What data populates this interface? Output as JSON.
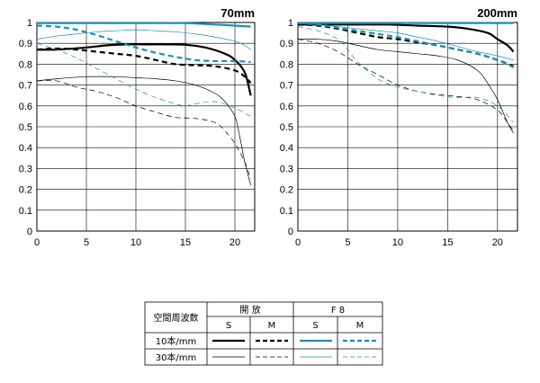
{
  "chart_data": [
    {
      "type": "line",
      "title": "70mm",
      "xlim": [
        0,
        22
      ],
      "ylim": [
        0,
        1
      ],
      "x_ticks": [
        "0",
        "5",
        "10",
        "15",
        "20"
      ],
      "y_ticks": [
        "0",
        "0.1",
        "0.2",
        "0.3",
        "0.4",
        "0.5",
        "0.6",
        "0.7",
        "0.8",
        "0.9",
        "1"
      ],
      "grid": true,
      "series": [
        {
          "key": "open_10_S",
          "style": "thick-solid-black",
          "x": [
            0,
            2,
            5,
            7,
            9,
            11,
            13,
            15,
            17,
            19,
            20,
            21,
            21.6
          ],
          "y": [
            0.87,
            0.87,
            0.88,
            0.89,
            0.895,
            0.895,
            0.895,
            0.893,
            0.88,
            0.85,
            0.82,
            0.76,
            0.65
          ]
        },
        {
          "key": "open_10_M",
          "style": "thick-dash-black",
          "x": [
            0,
            2,
            4,
            6,
            8,
            10,
            12,
            14,
            16,
            18,
            20,
            21,
            21.6
          ],
          "y": [
            0.87,
            0.875,
            0.87,
            0.86,
            0.85,
            0.84,
            0.82,
            0.8,
            0.795,
            0.79,
            0.77,
            0.74,
            0.71
          ]
        },
        {
          "key": "open_30_S",
          "style": "thin-solid-black",
          "x": [
            0,
            2,
            5,
            8,
            10,
            12,
            14,
            16,
            18,
            19,
            20,
            20.5,
            21,
            21.6
          ],
          "y": [
            0.72,
            0.73,
            0.74,
            0.74,
            0.735,
            0.73,
            0.72,
            0.7,
            0.66,
            0.62,
            0.55,
            0.45,
            0.33,
            0.22
          ]
        },
        {
          "key": "open_30_M",
          "style": "thin-dash-black",
          "x": [
            0,
            2,
            4,
            6,
            8,
            10,
            12,
            14,
            16,
            18,
            19,
            20,
            21,
            21.6
          ],
          "y": [
            0.72,
            0.72,
            0.69,
            0.67,
            0.64,
            0.6,
            0.57,
            0.545,
            0.54,
            0.52,
            0.48,
            0.42,
            0.33,
            0.25
          ]
        },
        {
          "key": "f8_10_S",
          "style": "thick-solid-blue",
          "x": [
            0,
            3,
            6,
            9,
            12,
            15,
            18,
            20,
            21.6
          ],
          "y": [
            0.997,
            0.997,
            0.997,
            0.997,
            0.997,
            0.997,
            0.99,
            0.985,
            0.98
          ]
        },
        {
          "key": "f8_10_M",
          "style": "thick-dash-blue",
          "x": [
            0,
            2,
            4,
            6,
            8,
            10,
            12,
            14,
            16,
            18,
            20,
            21.6
          ],
          "y": [
            0.985,
            0.98,
            0.965,
            0.94,
            0.91,
            0.88,
            0.855,
            0.835,
            0.82,
            0.815,
            0.815,
            0.81
          ]
        },
        {
          "key": "f8_30_S",
          "style": "thin-solid-blue",
          "x": [
            0,
            2,
            4,
            6,
            8,
            10,
            12,
            14,
            16,
            18,
            20,
            21,
            21.6
          ],
          "y": [
            0.92,
            0.935,
            0.945,
            0.955,
            0.96,
            0.965,
            0.96,
            0.955,
            0.945,
            0.93,
            0.91,
            0.89,
            0.87
          ]
        },
        {
          "key": "f8_30_M",
          "style": "thin-dash-blue",
          "x": [
            0,
            2,
            4,
            6,
            8,
            10,
            12,
            14,
            15,
            16,
            18,
            20,
            21.6
          ],
          "y": [
            0.9,
            0.87,
            0.83,
            0.78,
            0.73,
            0.68,
            0.64,
            0.61,
            0.6,
            0.61,
            0.62,
            0.59,
            0.55
          ]
        }
      ]
    },
    {
      "type": "line",
      "title": "200mm",
      "xlim": [
        0,
        22
      ],
      "ylim": [
        0,
        1
      ],
      "x_ticks": [
        "0",
        "5",
        "10",
        "15",
        "20"
      ],
      "y_ticks": [
        "0",
        "0.1",
        "0.2",
        "0.3",
        "0.4",
        "0.5",
        "0.6",
        "0.7",
        "0.8",
        "0.9",
        "1"
      ],
      "grid": true,
      "series": [
        {
          "key": "open_10_S",
          "style": "thick-solid-black",
          "x": [
            0,
            3,
            6,
            9,
            12,
            15,
            17,
            19,
            20,
            21,
            21.6
          ],
          "y": [
            0.99,
            0.99,
            0.99,
            0.99,
            0.985,
            0.98,
            0.97,
            0.95,
            0.92,
            0.89,
            0.86
          ]
        },
        {
          "key": "open_10_M",
          "style": "thick-dash-black",
          "x": [
            0,
            2,
            4,
            6,
            8,
            10,
            12,
            14,
            16,
            18,
            20,
            21.6
          ],
          "y": [
            0.99,
            0.985,
            0.97,
            0.95,
            0.93,
            0.92,
            0.905,
            0.89,
            0.87,
            0.85,
            0.82,
            0.79
          ]
        },
        {
          "key": "open_30_S",
          "style": "thin-solid-black",
          "x": [
            0,
            2,
            4,
            6,
            8,
            10,
            12,
            14,
            16,
            18,
            19,
            20,
            21,
            21.6
          ],
          "y": [
            0.92,
            0.92,
            0.91,
            0.89,
            0.87,
            0.86,
            0.85,
            0.84,
            0.82,
            0.77,
            0.71,
            0.63,
            0.52,
            0.47
          ]
        },
        {
          "key": "open_30_M",
          "style": "thin-dash-black",
          "x": [
            0,
            2,
            4,
            6,
            8,
            10,
            12,
            14,
            16,
            18,
            20,
            21,
            21.6
          ],
          "y": [
            0.92,
            0.9,
            0.86,
            0.8,
            0.75,
            0.7,
            0.67,
            0.655,
            0.645,
            0.63,
            0.58,
            0.52,
            0.48
          ]
        },
        {
          "key": "f8_10_S",
          "style": "thick-solid-blue",
          "x": [
            0,
            3,
            6,
            9,
            12,
            15,
            18,
            21.6
          ],
          "y": [
            0.997,
            0.997,
            0.997,
            0.997,
            0.997,
            0.997,
            0.997,
            0.997
          ]
        },
        {
          "key": "f8_10_M",
          "style": "thick-dash-blue",
          "x": [
            0,
            2,
            4,
            6,
            8,
            10,
            12,
            14,
            16,
            18,
            20,
            21.6
          ],
          "y": [
            0.997,
            0.99,
            0.975,
            0.96,
            0.945,
            0.93,
            0.91,
            0.89,
            0.87,
            0.85,
            0.82,
            0.785
          ]
        },
        {
          "key": "f8_30_S",
          "style": "thin-solid-blue",
          "x": [
            0,
            2,
            4,
            6,
            8,
            10,
            12,
            14,
            16,
            18,
            20,
            21.6
          ],
          "y": [
            0.997,
            0.99,
            0.98,
            0.97,
            0.96,
            0.95,
            0.93,
            0.91,
            0.885,
            0.86,
            0.84,
            0.82
          ]
        },
        {
          "key": "f8_30_M",
          "style": "thin-dash-blue",
          "x": [
            0,
            2,
            4,
            5,
            6,
            8,
            10,
            12,
            14,
            16,
            18,
            20,
            21.6
          ],
          "y": [
            0.98,
            0.96,
            0.92,
            0.87,
            0.81,
            0.73,
            0.69,
            0.67,
            0.65,
            0.64,
            0.64,
            0.6,
            0.52
          ]
        }
      ]
    }
  ],
  "legend": {
    "header_label": "空間周波数",
    "group_open": "開 放",
    "group_f8": "F 8",
    "col_s": "S",
    "col_m": "M",
    "row_10": "10本/mm",
    "row_30": "30本/mm"
  },
  "colors": {
    "black": "#000000",
    "blue": "#1a8fb8",
    "grid": "#000000"
  }
}
